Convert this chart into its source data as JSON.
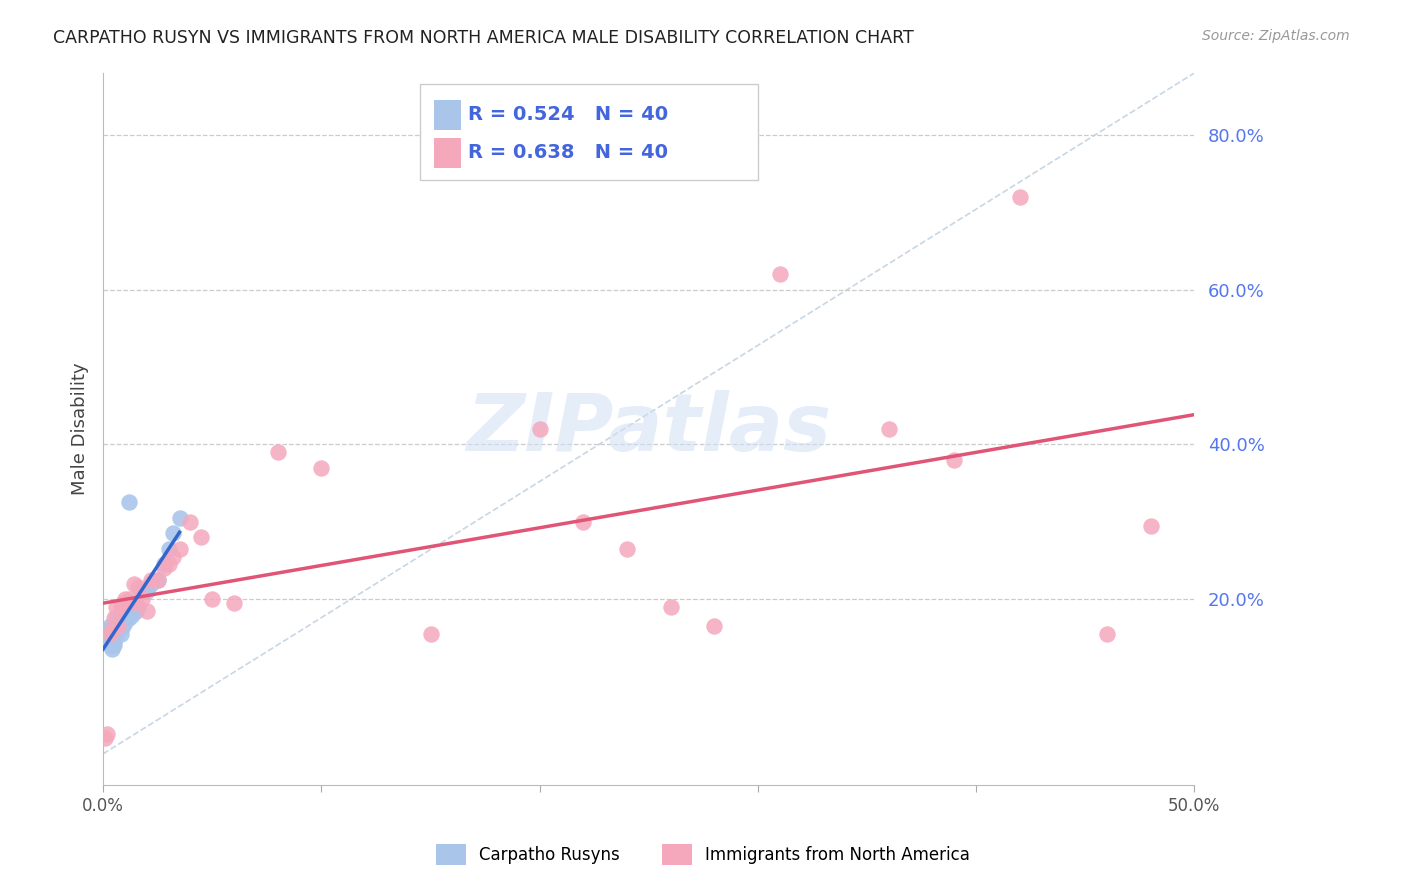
{
  "title": "CARPATHO RUSYN VS IMMIGRANTS FROM NORTH AMERICA MALE DISABILITY CORRELATION CHART",
  "source": "Source: ZipAtlas.com",
  "ylabel": "Male Disability",
  "xlim": [
    0.0,
    0.5
  ],
  "ylim": [
    -0.04,
    0.88
  ],
  "right_yticks": [
    0.2,
    0.4,
    0.6,
    0.8
  ],
  "right_ytick_labels": [
    "20.0%",
    "40.0%",
    "60.0%",
    "80.0%"
  ],
  "xtick_vals": [
    0.0,
    0.1,
    0.2,
    0.3,
    0.4,
    0.5
  ],
  "xtick_labels": [
    "0.0%",
    "",
    "",
    "",
    "",
    "50.0%"
  ],
  "blue_color": "#aac5ea",
  "blue_line_color": "#3366cc",
  "pink_color": "#f5a8bc",
  "pink_line_color": "#e05575",
  "right_axis_color": "#5577ee",
  "legend_text_color": "#4466dd",
  "background": "#ffffff",
  "grid_color": "#cccccc",
  "blue_r": "0.524",
  "blue_n": "40",
  "pink_r": "0.638",
  "pink_n": "40",
  "blue_scatter_x": [
    0.001,
    0.002,
    0.002,
    0.003,
    0.003,
    0.003,
    0.004,
    0.004,
    0.004,
    0.005,
    0.005,
    0.005,
    0.005,
    0.006,
    0.006,
    0.006,
    0.007,
    0.007,
    0.008,
    0.008,
    0.008,
    0.009,
    0.009,
    0.01,
    0.01,
    0.011,
    0.012,
    0.013,
    0.014,
    0.015,
    0.016,
    0.018,
    0.02,
    0.022,
    0.025,
    0.028,
    0.03,
    0.032,
    0.035,
    0.012
  ],
  "blue_scatter_y": [
    0.145,
    0.145,
    0.16,
    0.14,
    0.155,
    0.165,
    0.135,
    0.145,
    0.155,
    0.14,
    0.155,
    0.16,
    0.145,
    0.155,
    0.165,
    0.175,
    0.16,
    0.165,
    0.155,
    0.165,
    0.175,
    0.165,
    0.17,
    0.17,
    0.175,
    0.18,
    0.175,
    0.18,
    0.185,
    0.185,
    0.19,
    0.21,
    0.21,
    0.22,
    0.225,
    0.245,
    0.265,
    0.285,
    0.305,
    0.325
  ],
  "pink_scatter_x": [
    0.001,
    0.002,
    0.003,
    0.004,
    0.005,
    0.006,
    0.007,
    0.008,
    0.009,
    0.01,
    0.012,
    0.014,
    0.015,
    0.016,
    0.018,
    0.02,
    0.022,
    0.025,
    0.028,
    0.03,
    0.032,
    0.035,
    0.04,
    0.045,
    0.05,
    0.06,
    0.08,
    0.1,
    0.15,
    0.2,
    0.22,
    0.24,
    0.26,
    0.28,
    0.31,
    0.36,
    0.39,
    0.42,
    0.46,
    0.48
  ],
  "pink_scatter_y": [
    0.02,
    0.025,
    0.155,
    0.16,
    0.175,
    0.19,
    0.165,
    0.19,
    0.195,
    0.2,
    0.2,
    0.22,
    0.195,
    0.215,
    0.2,
    0.185,
    0.225,
    0.225,
    0.24,
    0.245,
    0.255,
    0.265,
    0.3,
    0.28,
    0.2,
    0.195,
    0.39,
    0.37,
    0.155,
    0.42,
    0.3,
    0.265,
    0.19,
    0.165,
    0.62,
    0.42,
    0.38,
    0.72,
    0.155,
    0.295
  ],
  "diag_line_x": [
    0.0,
    0.5
  ],
  "diag_line_y": [
    0.0,
    0.88
  ]
}
